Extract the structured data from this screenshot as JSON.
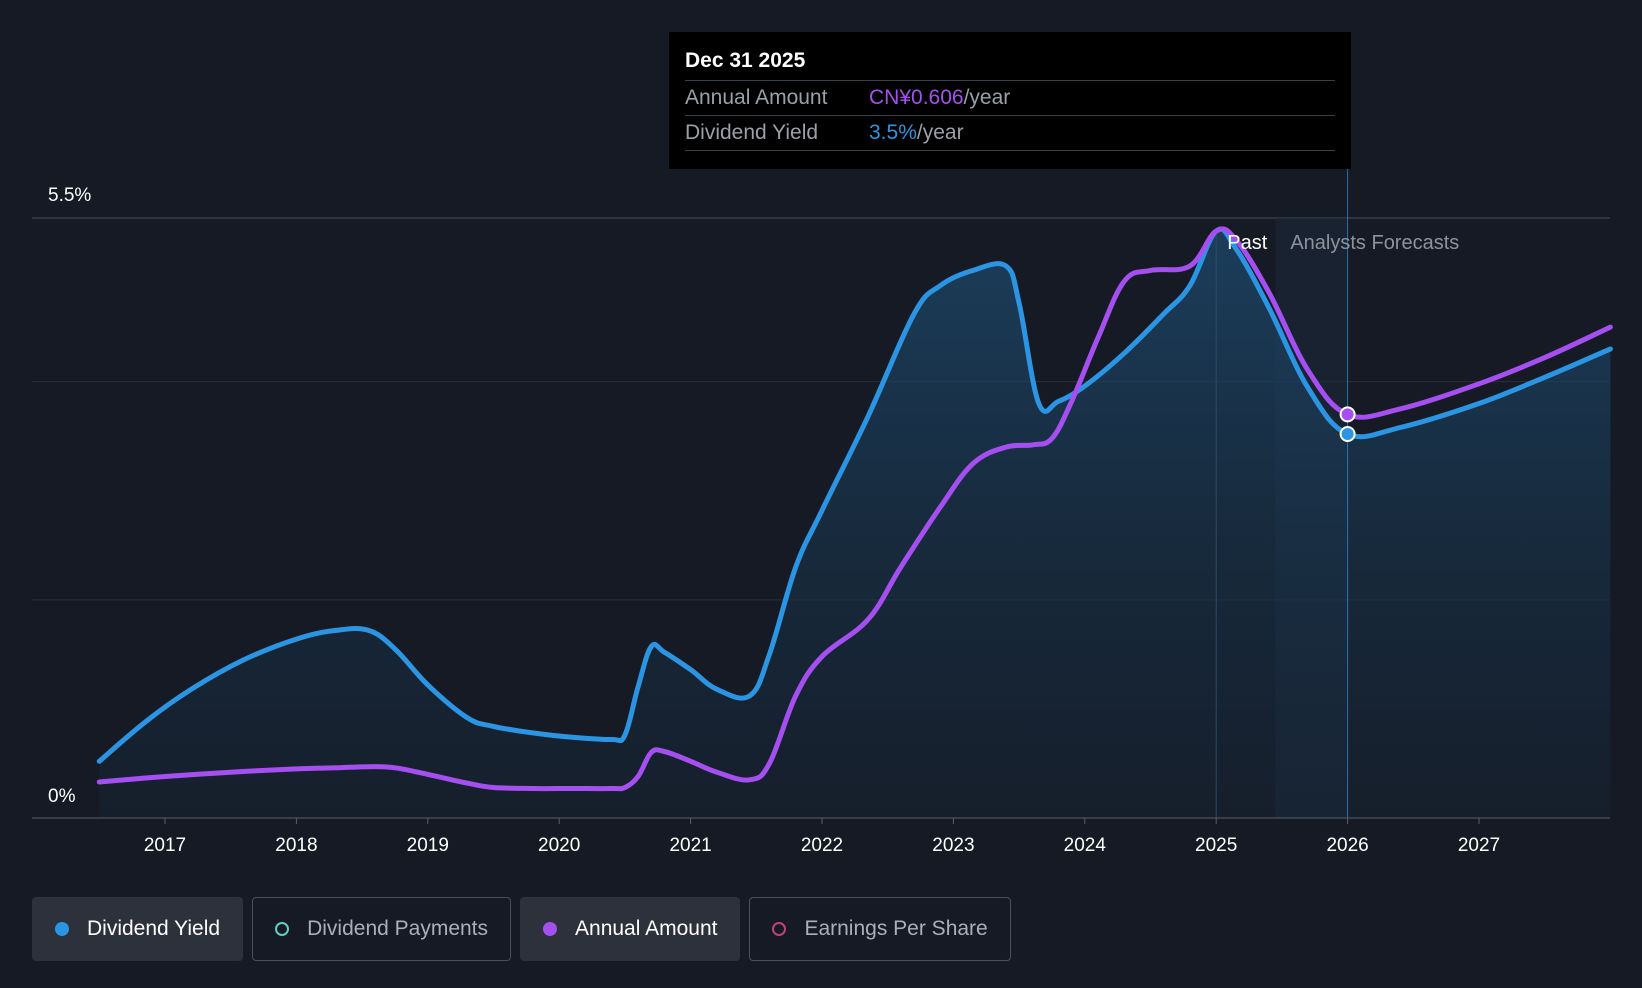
{
  "colors": {
    "background": "#151a24",
    "dividend_yield": "#2b95e3",
    "annual_amount": "#a54ff0",
    "dividend_payments": "#5fcfc0",
    "earnings_per_share": "#c2407a",
    "grid": "#2a303b",
    "axis": "#5a5f68"
  },
  "tooltip": {
    "date": "Dec 31 2025",
    "rows": [
      {
        "label": "Annual Amount",
        "value": "CN¥0.606",
        "unit": "/year",
        "color": "#a54ff0"
      },
      {
        "label": "Dividend Yield",
        "value": "3.5%",
        "unit": "/year",
        "color": "#2b95e3"
      }
    ]
  },
  "regions": {
    "past": "Past",
    "forecast": "Analysts Forecasts"
  },
  "legend": [
    {
      "label": "Dividend Yield",
      "icon": "filled-dot-icon",
      "color": "#2b95e3",
      "active": true
    },
    {
      "label": "Dividend Payments",
      "icon": "hollow-dot-icon",
      "color": "#5fcfc0",
      "active": false
    },
    {
      "label": "Annual Amount",
      "icon": "filled-dot-icon",
      "color": "#a54ff0",
      "active": true
    },
    {
      "label": "Earnings Per Share",
      "icon": "hollow-dot-icon",
      "color": "#c2407a",
      "active": false
    }
  ],
  "chart_data": {
    "type": "area",
    "title": "",
    "xlabel": "",
    "ylabel": "",
    "ylim": [
      0,
      5.5
    ],
    "xlim": [
      2016.0,
      2028.0
    ],
    "y_tick_labels": [
      {
        "value": 0,
        "label": "0%"
      },
      {
        "value": 5.5,
        "label": "5.5%"
      }
    ],
    "y_gridlines": [
      2.0,
      4.0,
      5.5
    ],
    "x_ticks": [
      2017,
      2018,
      2019,
      2020,
      2021,
      2022,
      2023,
      2024,
      2025,
      2026,
      2027
    ],
    "past_end": 2025.0,
    "forecast_start": 2025.45,
    "highlight_x": 2026.0,
    "series": [
      {
        "name": "Dividend Yield",
        "filled": true,
        "x": [
          2016.5,
          2016.85,
          2017.2,
          2017.6,
          2018.0,
          2018.3,
          2018.55,
          2018.75,
          2019.0,
          2019.3,
          2019.5,
          2019.8,
          2020.1,
          2020.4,
          2020.5,
          2020.6,
          2020.7,
          2020.8,
          2021.0,
          2021.2,
          2021.45,
          2021.6,
          2021.8,
          2022.0,
          2022.35,
          2022.7,
          2022.9,
          2023.15,
          2023.4,
          2023.5,
          2023.65,
          2023.8,
          2024.0,
          2024.3,
          2024.6,
          2024.8,
          2025.0,
          2025.15,
          2025.4,
          2025.7,
          2026.0,
          2026.4,
          2027.0,
          2027.5,
          2028.0
        ],
        "values": [
          0.52,
          0.88,
          1.18,
          1.45,
          1.64,
          1.72,
          1.72,
          1.55,
          1.22,
          0.92,
          0.84,
          0.78,
          0.74,
          0.72,
          0.76,
          1.2,
          1.57,
          1.52,
          1.36,
          1.18,
          1.12,
          1.5,
          2.3,
          2.82,
          3.68,
          4.62,
          4.88,
          5.02,
          5.06,
          4.72,
          3.8,
          3.82,
          3.96,
          4.26,
          4.62,
          4.88,
          5.38,
          5.22,
          4.68,
          3.94,
          3.52,
          3.58,
          3.8,
          4.04,
          4.3
        ]
      },
      {
        "name": "Annual Amount",
        "filled": false,
        "x": [
          2016.5,
          2017.0,
          2017.5,
          2018.0,
          2018.3,
          2018.55,
          2018.75,
          2019.0,
          2019.3,
          2019.5,
          2019.8,
          2020.1,
          2020.4,
          2020.5,
          2020.6,
          2020.7,
          2020.8,
          2021.0,
          2021.2,
          2021.45,
          2021.6,
          2021.8,
          2022.0,
          2022.35,
          2022.6,
          2022.9,
          2023.15,
          2023.4,
          2023.6,
          2023.75,
          2023.9,
          2024.1,
          2024.3,
          2024.5,
          2024.8,
          2025.0,
          2025.15,
          2025.4,
          2025.7,
          2026.0,
          2026.4,
          2027.0,
          2027.5,
          2028.0
        ],
        "values": [
          0.33,
          0.38,
          0.42,
          0.45,
          0.46,
          0.47,
          0.46,
          0.4,
          0.32,
          0.28,
          0.27,
          0.27,
          0.27,
          0.28,
          0.38,
          0.6,
          0.61,
          0.52,
          0.42,
          0.35,
          0.5,
          1.12,
          1.48,
          1.82,
          2.3,
          2.85,
          3.25,
          3.4,
          3.42,
          3.48,
          3.82,
          4.4,
          4.92,
          5.02,
          5.06,
          5.38,
          5.3,
          4.82,
          4.1,
          3.7,
          3.75,
          3.98,
          4.22,
          4.5
        ]
      }
    ],
    "highlight_points": [
      {
        "series": "Annual Amount",
        "x": 2026.0,
        "y": 3.7
      },
      {
        "series": "Dividend Yield",
        "x": 2026.0,
        "y": 3.52
      }
    ]
  }
}
